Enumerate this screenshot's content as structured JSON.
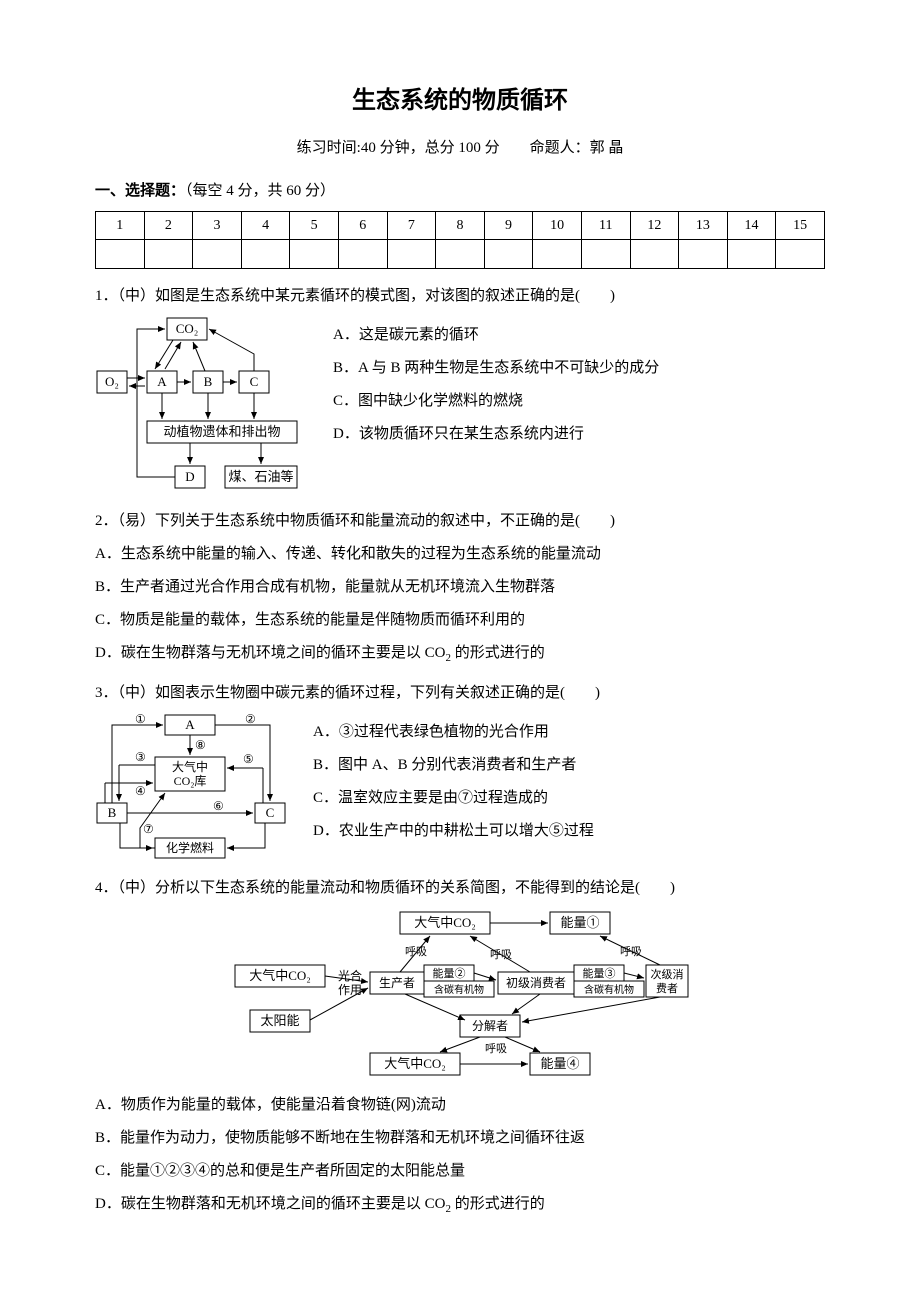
{
  "title": "生态系统的物质循环",
  "subtitle": "练习时间:40 分钟，总分 100 分　　命题人：郭 晶",
  "section": {
    "head_bold": "一、选择题：",
    "head_rest": "（每空 4 分，共 60 分）"
  },
  "grid_headers": [
    "1",
    "2",
    "3",
    "4",
    "5",
    "6",
    "7",
    "8",
    "9",
    "10",
    "11",
    "12",
    "13",
    "14",
    "15"
  ],
  "q1": {
    "stem": "1．（中）如图是生态系统中某元素循环的模式图，对该图的叙述正确的是(　　)",
    "A": "A．这是碳元素的循环",
    "B": "B．A 与 B 两种生物是生态系统中不可缺少的成分",
    "C": "C．图中缺少化学燃料的燃烧",
    "D": "D．该物质循环只在某生态系统内进行",
    "fig": {
      "O2": "O₂",
      "A": "A",
      "B": "B",
      "C": "C",
      "D": "D",
      "CO2": "CO₂",
      "mid": "动植物遗体和排出物",
      "coal": "煤、石油等"
    }
  },
  "q2": {
    "stem": "2．（易）下列关于生态系统中物质循环和能量流动的叙述中，不正确的是(　　)",
    "A": "A．生态系统中能量的输入、传递、转化和散失的过程为生态系统的能量流动",
    "B": "B．生产者通过光合作用合成有机物，能量就从无机环境流入生物群落",
    "C": "C．物质是能量的载体，生态系统的能量是伴随物质而循环利用的",
    "D_pre": "D．碳在生物群落与无机环境之间的循环主要是以 CO",
    "D_post": " 的形式进行的"
  },
  "q3": {
    "stem": "3．（中）如图表示生物圈中碳元素的循环过程，下列有关叙述正确的是(　　)",
    "A": "A．③过程代表绿色植物的光合作用",
    "B": "B．图中 A、B 分别代表消费者和生产者",
    "C": "C．温室效应主要是由⑦过程造成的",
    "D": "D．农业生产中的中耕松土可以增大⑤过程",
    "fig": {
      "A": "A",
      "B": "B",
      "C": "C",
      "center1": "大气中",
      "center2": "CO₂库",
      "fuel": "化学燃料",
      "n1": "①",
      "n2": "②",
      "n3": "③",
      "n4": "④",
      "n5": "⑤",
      "n6": "⑥",
      "n7": "⑦",
      "n8": "⑧"
    }
  },
  "q4": {
    "stem": "4．（中）分析以下生态系统的能量流动和物质循环的关系简图，不能得到的结论是(　　)",
    "A": "A．物质作为能量的载体，使能量沿着食物链(网)流动",
    "B": "B．能量作为动力，使物质能够不断地在生物群落和无机环境之间循环往返",
    "C": "C．能量①②③④的总和便是生产者所固定的太阳能总量",
    "D_pre": "D．碳在生物群落和无机环境之间的循环主要是以 CO",
    "D_post": " 的形式进行的",
    "fig": {
      "co2_top": "大气中CO₂",
      "e1": "能量①",
      "co2_left": "大气中CO₂",
      "sun": "太阳能",
      "ps": "光合\n作用",
      "prod": "生产者",
      "e2": "能量②",
      "org2": "含碳有机物",
      "cons1": "初级消费者",
      "e3": "能量③",
      "org3": "含碳有机物",
      "cons2a": "次级消",
      "cons2b": "费者",
      "decomp": "分解者",
      "co2_bot": "大气中CO₂",
      "e4": "能量④",
      "resp": "呼吸"
    }
  },
  "colors": {
    "text": "#000000",
    "bg": "#ffffff",
    "line": "#000000"
  }
}
